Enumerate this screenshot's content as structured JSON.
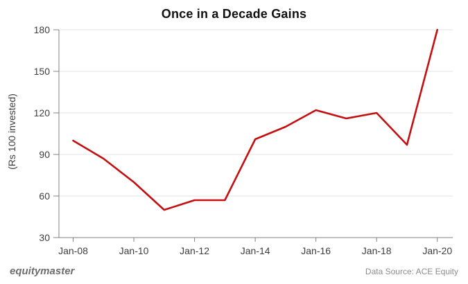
{
  "chart_data": {
    "type": "line",
    "title": "Once in a Decade Gains",
    "xlabel": "",
    "ylabel": "(Rs 100 invested)",
    "x": [
      "Jan-08",
      "Jan-09",
      "Jan-10",
      "Jan-11",
      "Jan-12",
      "Jan-13",
      "Jan-14",
      "Jan-15",
      "Jan-16",
      "Jan-17",
      "Jan-18",
      "Jan-19",
      "Jan-20"
    ],
    "series": [
      {
        "name": "Rs 100 invested",
        "values": [
          100,
          87,
          70,
          50,
          57,
          57,
          101,
          110,
          122,
          116,
          120,
          97,
          180
        ]
      }
    ],
    "x_tick_labels": [
      "Jan-08",
      "Jan-10",
      "Jan-12",
      "Jan-14",
      "Jan-16",
      "Jan-18",
      "Jan-20"
    ],
    "x_tick_every": 2,
    "yticks": [
      30,
      60,
      90,
      120,
      150,
      180
    ],
    "ylim": [
      30,
      180
    ],
    "grid": "horizontal",
    "legend": "none",
    "colors": {
      "line": "#c40f10",
      "axis": "#808080",
      "grid": "#e3e3e3",
      "tick_label": "#3d3d3d",
      "title": "#111111"
    }
  },
  "footer": {
    "brand": "equitymaster",
    "data_source": "Data Source: ACE Equity"
  }
}
